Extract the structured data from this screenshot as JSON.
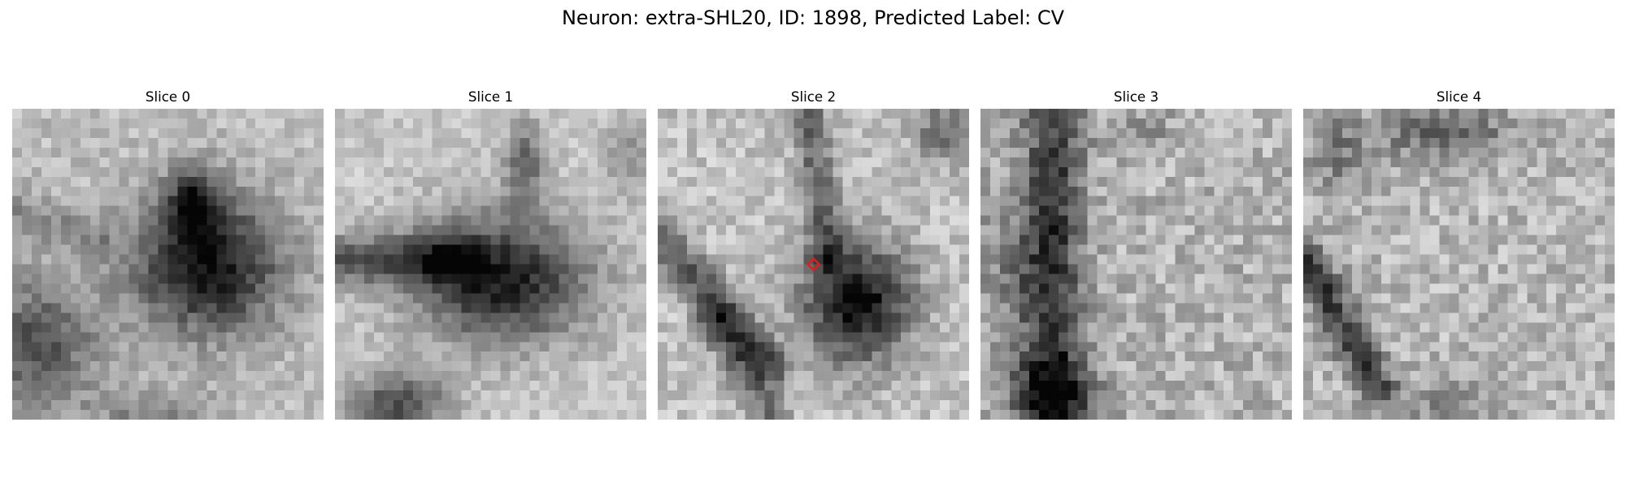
{
  "figure": {
    "title": "Neuron: extra-SHL20, ID: 1898, Predicted Label: CV"
  },
  "panels": [
    {
      "title": "Slice 0",
      "has_marker": false
    },
    {
      "title": "Slice 1",
      "has_marker": false
    },
    {
      "title": "Slice 2",
      "has_marker": true
    },
    {
      "title": "Slice 3",
      "has_marker": false
    },
    {
      "title": "Slice 4",
      "has_marker": false
    }
  ],
  "image": {
    "colormap": "grayscale",
    "grid_cells": 32
  },
  "marker": {
    "shape": "diamond",
    "color": "#e41a1c"
  }
}
